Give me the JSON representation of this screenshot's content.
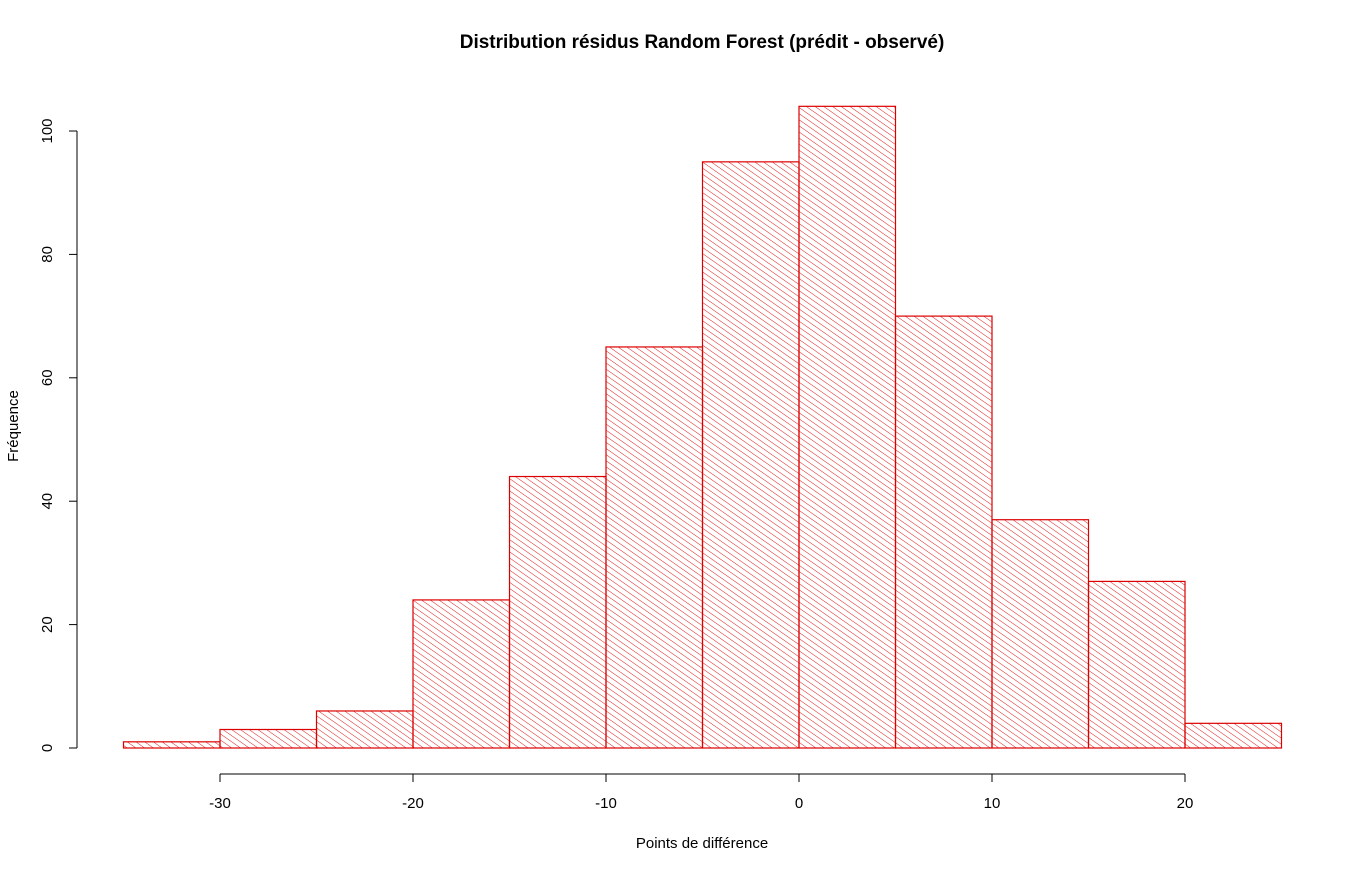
{
  "chart_data": {
    "type": "bar",
    "title": "Distribution résidus Random Forest (prédit - observé)",
    "xlabel": "Points de différence",
    "ylabel": "Fréquence",
    "bins": [
      {
        "from": -35,
        "to": -30,
        "count": 1
      },
      {
        "from": -30,
        "to": -25,
        "count": 3
      },
      {
        "from": -25,
        "to": -20,
        "count": 6
      },
      {
        "from": -20,
        "to": -15,
        "count": 24
      },
      {
        "from": -15,
        "to": -10,
        "count": 44
      },
      {
        "from": -10,
        "to": -5,
        "count": 65
      },
      {
        "from": -5,
        "to": 0,
        "count": 95
      },
      {
        "from": 0,
        "to": 5,
        "count": 104
      },
      {
        "from": 5,
        "to": 10,
        "count": 70
      },
      {
        "from": 10,
        "to": 15,
        "count": 37
      },
      {
        "from": 15,
        "to": 20,
        "count": 27
      },
      {
        "from": 20,
        "to": 25,
        "count": 4
      }
    ],
    "x_ticks": [
      -30,
      -20,
      -10,
      0,
      10,
      20
    ],
    "y_ticks": [
      0,
      20,
      40,
      60,
      80,
      100
    ],
    "xlim": [
      -35,
      25
    ],
    "ylim": [
      0,
      104
    ],
    "grid": false,
    "bar_color": "#dd0000",
    "fill": "hatched"
  }
}
